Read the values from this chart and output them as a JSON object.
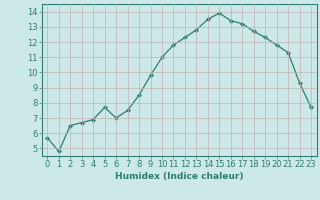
{
  "x": [
    0,
    1,
    2,
    3,
    4,
    5,
    6,
    7,
    8,
    9,
    10,
    11,
    12,
    13,
    14,
    15,
    16,
    17,
    18,
    19,
    20,
    21,
    22,
    23
  ],
  "y": [
    5.7,
    4.8,
    6.5,
    6.7,
    6.9,
    7.7,
    7.0,
    7.5,
    8.5,
    9.8,
    11.0,
    11.8,
    12.3,
    12.8,
    13.5,
    13.9,
    13.4,
    13.2,
    12.7,
    12.3,
    11.8,
    11.3,
    9.3,
    7.7
  ],
  "line_color": "#2e7d6e",
  "marker": "D",
  "marker_size": 2,
  "bg_color": "#cce8e8",
  "grid_color": "#c0b0b0",
  "xlabel": "Humidex (Indice chaleur)",
  "xlim": [
    -0.5,
    23.5
  ],
  "ylim": [
    4.5,
    14.5
  ],
  "yticks": [
    5,
    6,
    7,
    8,
    9,
    10,
    11,
    12,
    13,
    14
  ],
  "xticks": [
    0,
    1,
    2,
    3,
    4,
    5,
    6,
    7,
    8,
    9,
    10,
    11,
    12,
    13,
    14,
    15,
    16,
    17,
    18,
    19,
    20,
    21,
    22,
    23
  ],
  "label_fontsize": 6.5,
  "tick_fontsize": 6
}
